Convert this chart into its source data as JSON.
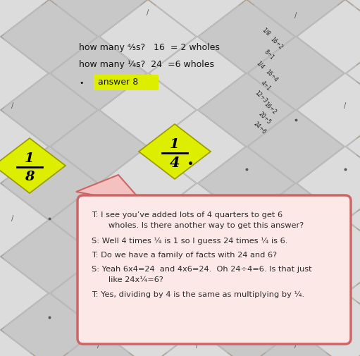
{
  "bg_color": "#b8864e",
  "paper_color": "#d4d4d4",
  "paper_light": "#dcdcdc",
  "paper_dark": "#c8c8c8",
  "yellow_color": "#ddee00",
  "bubble_bg": "#fde8e8",
  "bubble_border": "#cc6666",
  "arrow_color": "#f5c0c0",
  "arrow_border": "#cc6666",
  "figsize": [
    5.11,
    5.05
  ],
  "dpi": 100,
  "bubble_texts": [
    "T: I see you’ve added lots of 4 quarters to get 6",
    "   wholes. Is there another way to get this answer?",
    "",
    "S: Well 4 times ¼ is 1 so I guess 24 times ¼ is 6.",
    "",
    "T: Do we have a family of facts with 24 and 6?",
    "",
    "S: Yeah 6x4=24  and 4x6=24.  Oh 24÷4=6. Is that just",
    "   like 24x¼=6?",
    "",
    "T: Yes, dividing by 4 is the same as multiplying by ¼."
  ],
  "top_text": [
    "how many ⅘s?   16  = 2 wholes",
    "how many ¼s?  24  =6 wholes"
  ],
  "answer_text": "answer 8",
  "upper_right_lines": [
    "1/8",
    "16÷2",
    "8÷1",
    "1/4",
    "16÷4",
    "4÷1",
    "12÷3",
    "16÷2",
    "20÷5",
    "24÷6"
  ]
}
